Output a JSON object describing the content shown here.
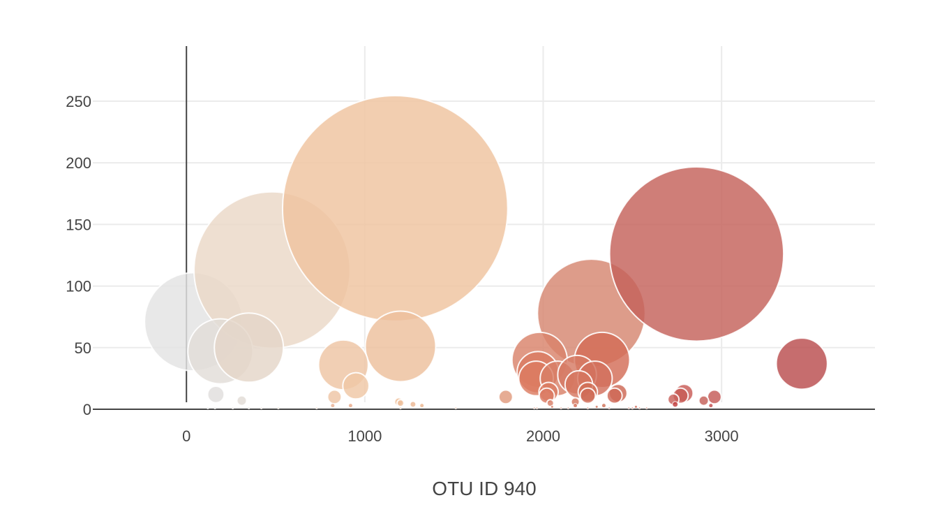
{
  "chart_data": {
    "type": "scatter",
    "subtype": "bubble",
    "title": "",
    "xlabel": "OTU ID 940",
    "ylabel": "",
    "xlim": [
      -525,
      3860
    ],
    "ylim": [
      -17,
      297
    ],
    "xticks": [
      0,
      1000,
      2000,
      3000
    ],
    "yticks": [
      0,
      50,
      100,
      150,
      200,
      250
    ],
    "x_tick_labels": [
      "0",
      "1000",
      "2000",
      "3000"
    ],
    "y_tick_labels": [
      "0",
      "50",
      "100",
      "150",
      "200",
      "250"
    ],
    "grid": true,
    "legend": "none",
    "colorscale": [
      "#e6e6e6",
      "#ecd5c1",
      "#efc39f",
      "#e8b08c",
      "#d98069",
      "#cd6654",
      "#c65f5b",
      "#b94d4e"
    ],
    "points": [
      {
        "otu_id": 40,
        "value": 71,
        "color": "#e3e3e3"
      },
      {
        "otu_id": 480,
        "value": 113,
        "color": "#ead8c7"
      },
      {
        "otu_id": 1170,
        "value": 163,
        "color": "#efc39f"
      },
      {
        "otu_id": 2270,
        "value": 78,
        "color": "#d68670"
      },
      {
        "otu_id": 2860,
        "value": 126,
        "color": "#c4625a"
      },
      {
        "otu_id": 190,
        "value": 47,
        "color": "#e2ddd8"
      },
      {
        "otu_id": 350,
        "value": 50,
        "color": "#e4d6c8"
      },
      {
        "otu_id": 1200,
        "value": 51,
        "color": "#edc09c"
      },
      {
        "otu_id": 880,
        "value": 36,
        "color": "#eec5a3"
      },
      {
        "otu_id": 950,
        "value": 19,
        "color": "#efc7a5"
      },
      {
        "otu_id": 3450,
        "value": 37,
        "color": "#b94d4e"
      },
      {
        "otu_id": 1980,
        "value": 40,
        "color": "#d9826a"
      },
      {
        "otu_id": 2330,
        "value": 40,
        "color": "#d36c57"
      },
      {
        "otu_id": 1970,
        "value": 30,
        "color": "#d97a62"
      },
      {
        "otu_id": 1960,
        "value": 25,
        "color": "#dc7b60"
      },
      {
        "otu_id": 2080,
        "value": 25,
        "color": "#d88068"
      },
      {
        "otu_id": 2190,
        "value": 28,
        "color": "#d57a64"
      },
      {
        "otu_id": 2290,
        "value": 25,
        "color": "#d2705d"
      },
      {
        "otu_id": 2200,
        "value": 20,
        "color": "#d5765f"
      },
      {
        "otu_id": 2030,
        "value": 14,
        "color": "#dc7e64"
      },
      {
        "otu_id": 2250,
        "value": 14,
        "color": "#d17058"
      },
      {
        "otu_id": 2020,
        "value": 11,
        "color": "#da7a63"
      },
      {
        "otu_id": 2250,
        "value": 11,
        "color": "#d06b57"
      },
      {
        "otu_id": 2420,
        "value": 13,
        "color": "#cd6854"
      },
      {
        "otu_id": 2400,
        "value": 11,
        "color": "#ce6856"
      },
      {
        "otu_id": 1790,
        "value": 10,
        "color": "#e09a7d"
      },
      {
        "otu_id": 2790,
        "value": 13,
        "color": "#c85a55"
      },
      {
        "otu_id": 2770,
        "value": 11,
        "color": "#c75c56"
      },
      {
        "otu_id": 2960,
        "value": 10,
        "color": "#c45a57"
      },
      {
        "otu_id": 2730,
        "value": 8,
        "color": "#c8605a"
      },
      {
        "otu_id": 2900,
        "value": 7,
        "color": "#c55f58"
      },
      {
        "otu_id": 165,
        "value": 12,
        "color": "#e0dedd"
      },
      {
        "otu_id": 830,
        "value": 10,
        "color": "#eec5a5"
      },
      {
        "otu_id": 310,
        "value": 7,
        "color": "#e2dcd6"
      },
      {
        "otu_id": 1190,
        "value": 6,
        "color": "#eebb93"
      },
      {
        "otu_id": 1200,
        "value": 5,
        "color": "#eec09b"
      },
      {
        "otu_id": 1270,
        "value": 4,
        "color": "#ebb792"
      },
      {
        "otu_id": 1320,
        "value": 3,
        "color": "#eab58d"
      },
      {
        "otu_id": 2040,
        "value": 5,
        "color": "#d87f68"
      },
      {
        "otu_id": 2180,
        "value": 6,
        "color": "#d3775f"
      },
      {
        "otu_id": 2180,
        "value": 3,
        "color": "#d6745e"
      },
      {
        "otu_id": 2740,
        "value": 4,
        "color": "#c23d3d"
      },
      {
        "otu_id": 2940,
        "value": 3,
        "color": "#c24a4a"
      },
      {
        "otu_id": 920,
        "value": 3,
        "color": "#e8a888"
      },
      {
        "otu_id": 820,
        "value": 3,
        "color": "#e9b192"
      },
      {
        "otu_id": 2340,
        "value": 3,
        "color": "#d07057"
      },
      {
        "otu_id": 2520,
        "value": 2,
        "color": "#cf6a58"
      },
      {
        "otu_id": 2050,
        "value": 2,
        "color": "#d7806a"
      },
      {
        "otu_id": 2300,
        "value": 2,
        "color": "#d0735b"
      },
      {
        "otu_id": 120,
        "value": 1,
        "color": "#e3e3e3"
      },
      {
        "otu_id": 160,
        "value": 1,
        "color": "#e1e1e1"
      },
      {
        "otu_id": 260,
        "value": 1,
        "color": "#e2ddd8"
      },
      {
        "otu_id": 350,
        "value": 1,
        "color": "#e3dbd3"
      },
      {
        "otu_id": 420,
        "value": 1,
        "color": "#e6d9cc"
      },
      {
        "otu_id": 515,
        "value": 1,
        "color": "#e8d4c0"
      },
      {
        "otu_id": 730,
        "value": 1,
        "color": "#ecd0b8"
      },
      {
        "otu_id": 1200,
        "value": 1,
        "color": "#ecc09c"
      },
      {
        "otu_id": 1510,
        "value": 1,
        "color": "#ebb08c"
      },
      {
        "otu_id": 1950,
        "value": 1,
        "color": "#dc8b70"
      },
      {
        "otu_id": 1965,
        "value": 1,
        "color": "#dc8a6f"
      },
      {
        "otu_id": 2100,
        "value": 1,
        "color": "#d9836b"
      },
      {
        "otu_id": 2140,
        "value": 1,
        "color": "#d7816a"
      },
      {
        "otu_id": 2250,
        "value": 1,
        "color": "#d37560"
      },
      {
        "otu_id": 2370,
        "value": 1,
        "color": "#d06d5a"
      },
      {
        "otu_id": 2480,
        "value": 1,
        "color": "#ce6a57"
      },
      {
        "otu_id": 2500,
        "value": 1,
        "color": "#ce6a57"
      },
      {
        "otu_id": 2540,
        "value": 1,
        "color": "#cd6956"
      },
      {
        "otu_id": 2580,
        "value": 1,
        "color": "#cd6855"
      }
    ]
  }
}
